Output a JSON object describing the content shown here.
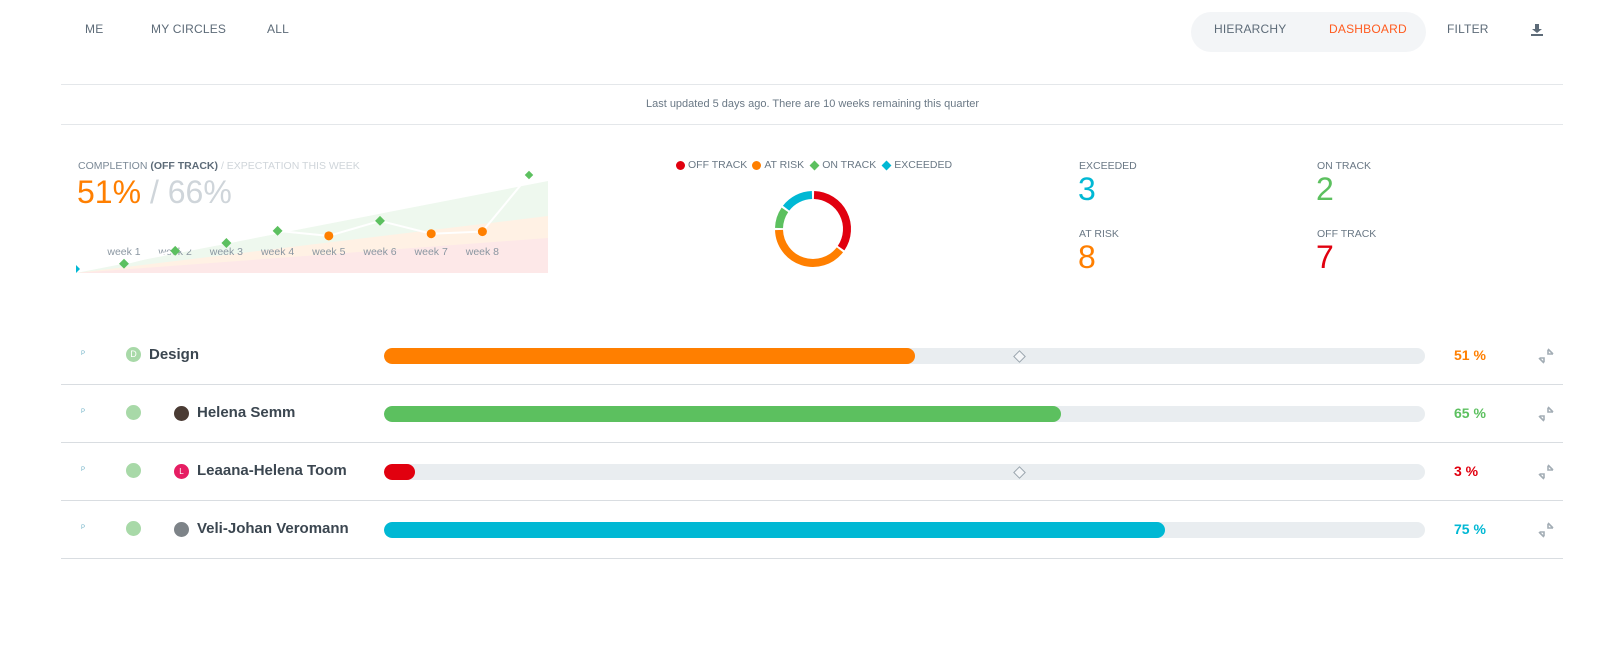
{
  "nav": {
    "scope_tabs": [
      "ME",
      "MY CIRCLES",
      "ALL"
    ],
    "view_tabs": [
      {
        "label": "HIERARCHY",
        "active": false
      },
      {
        "label": "DASHBOARD",
        "active": true
      }
    ],
    "filter_label": "FILTER",
    "download_icon": "download-icon"
  },
  "status_line": "Last updated 5 days ago. There are 10 weeks remaining this quarter",
  "completion": {
    "label_prefix": "COMPLETION",
    "label_status": "(OFF TRACK)",
    "label_expectation": "/ EXPECTATION THIS WEEK",
    "value": "51%",
    "separator": "/",
    "expected": "66%"
  },
  "chart_data": [
    {
      "type": "line",
      "x": [
        "week 1",
        "week 2",
        "week 3",
        "week 4",
        "week 5",
        "week 6",
        "week 7",
        "week 8"
      ],
      "xlabel": "",
      "ylabel": "",
      "series": [
        {
          "values": [
            13,
            31,
            42,
            59,
            52,
            73,
            55,
            58
          ],
          "markers": [
            "on track",
            "on track",
            "on track",
            "on track",
            "at risk",
            "on track",
            "at risk",
            "at risk"
          ]
        }
      ],
      "ylim": [
        0,
        140
      ],
      "bands": [
        "off track",
        "at risk",
        "on track"
      ]
    },
    {
      "type": "pie",
      "donut": true,
      "labels": [
        "OFF TRACK",
        "AT RISK",
        "ON TRACK",
        "EXCEEDED"
      ],
      "values": [
        7,
        8,
        2,
        3
      ],
      "colors": [
        "#e1000f",
        "#ff7f00",
        "#5cc05f",
        "#00b8d4"
      ]
    }
  ],
  "legend": [
    {
      "label": "OFF TRACK",
      "shape": "dot",
      "color": "#e1000f"
    },
    {
      "label": "AT RISK",
      "shape": "dot",
      "color": "#ff7f00"
    },
    {
      "label": "ON TRACK",
      "shape": "diamond",
      "color": "#5cc05f"
    },
    {
      "label": "EXCEEDED",
      "shape": "diamond",
      "color": "#00b8d4"
    }
  ],
  "stats": {
    "exceeded": {
      "label": "EXCEEDED",
      "value": "3",
      "color": "#00b8d4"
    },
    "on_track": {
      "label": "ON TRACK",
      "value": "2",
      "color": "#5cc05f"
    },
    "at_risk": {
      "label": "AT RISK",
      "value": "8",
      "color": "#ff7f00"
    },
    "off_track": {
      "label": "OFF TRACK",
      "value": "7",
      "color": "#e1000f"
    }
  },
  "rows": [
    {
      "name": "Design",
      "badge": "D",
      "avatar_color": "",
      "progress": 0.51,
      "percent": "51 %",
      "color": "#ff7f00",
      "expectation": 0.61
    },
    {
      "name": "Helena Semm",
      "badge": "",
      "avatar_color": "#4a3b34",
      "progress": 0.65,
      "percent": "65 %",
      "color": "#5cc05f",
      "expectation": null
    },
    {
      "name": "Leaana-Helena Toom",
      "badge": "L",
      "avatar_color": "#e61e63",
      "progress": 0.03,
      "percent": "3 %",
      "color": "#e1000f",
      "expectation": 0.61
    },
    {
      "name": "Veli-Johan Veromann",
      "badge": "",
      "avatar_color": "#7d8388",
      "progress": 0.75,
      "percent": "75 %",
      "color": "#00b8d4",
      "expectation": null
    }
  ],
  "colors": {
    "accent": "#ff5b1f",
    "off_track": "#e1000f",
    "at_risk": "#ff7f00",
    "on_track": "#5cc05f",
    "exceeded": "#00b8d4"
  }
}
